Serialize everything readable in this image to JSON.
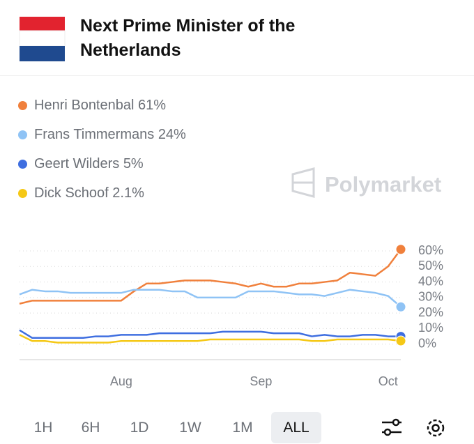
{
  "header": {
    "title": "Next Prime Minister of the Netherlands"
  },
  "watermark": "Polymarket",
  "chart_data": {
    "type": "line",
    "categories": [
      null,
      null,
      null,
      null,
      null,
      null,
      null,
      null,
      "Aug",
      null,
      null,
      null,
      null,
      null,
      null,
      null,
      null,
      null,
      null,
      "Sep",
      null,
      null,
      null,
      null,
      null,
      null,
      null,
      null,
      null,
      "Oct",
      null
    ],
    "series": [
      {
        "name": "Henri Bontenbal",
        "color": "#f0803c",
        "current": 61,
        "current_label": "61%",
        "values": [
          26,
          28,
          28,
          28,
          28,
          28,
          28,
          28,
          28,
          34,
          39,
          39,
          40,
          41,
          41,
          41,
          40,
          39,
          37,
          39,
          37,
          37,
          39,
          39,
          40,
          41,
          46,
          45,
          44,
          50,
          61
        ]
      },
      {
        "name": "Frans Timmermans",
        "color": "#8fc3f5",
        "current": 24,
        "current_label": "24%",
        "values": [
          32,
          35,
          34,
          34,
          33,
          33,
          33,
          33,
          33,
          35,
          35,
          35,
          34,
          34,
          30,
          30,
          30,
          30,
          34,
          34,
          34,
          33,
          32,
          32,
          31,
          33,
          35,
          34,
          33,
          31,
          24
        ]
      },
      {
        "name": "Geert Wilders",
        "color": "#3e6ee0",
        "current": 5,
        "current_label": "5%",
        "values": [
          9,
          4,
          4,
          4,
          4,
          4,
          5,
          5,
          6,
          6,
          6,
          7,
          7,
          7,
          7,
          7,
          8,
          8,
          8,
          8,
          7,
          7,
          7,
          5,
          6,
          5,
          5,
          6,
          6,
          5,
          5
        ]
      },
      {
        "name": "Dick Schoof",
        "color": "#f5c816",
        "current": 2.1,
        "current_label": "2.1%",
        "values": [
          6,
          2,
          2,
          1,
          1,
          1,
          1,
          1,
          2,
          2,
          2,
          2,
          2,
          2,
          2,
          3,
          3,
          3,
          3,
          3,
          3,
          3,
          3,
          2,
          2,
          3,
          3,
          3,
          3,
          3,
          2.1
        ]
      }
    ],
    "ylim": [
      -10,
      60
    ],
    "yticks": [
      {
        "value": 60,
        "label": "60%"
      },
      {
        "value": 50,
        "label": "50%"
      },
      {
        "value": 40,
        "label": "40%"
      },
      {
        "value": 30,
        "label": "30%"
      },
      {
        "value": 20,
        "label": "20%"
      },
      {
        "value": 10,
        "label": "10%"
      },
      {
        "value": 0,
        "label": "0%"
      }
    ],
    "grid": true
  },
  "timeframes": {
    "options": [
      "1H",
      "6H",
      "1D",
      "1W",
      "1M",
      "ALL"
    ],
    "selected": 5
  }
}
